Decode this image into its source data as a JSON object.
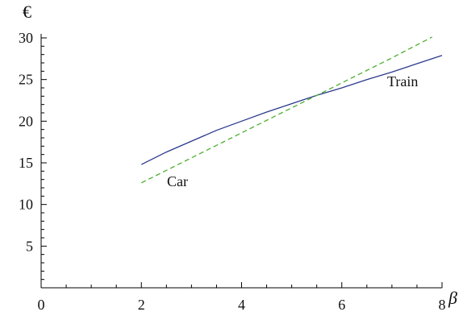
{
  "chart_data": {
    "type": "line",
    "title": "",
    "xlabel": "β",
    "ylabel": "€",
    "xlim": [
      0,
      8
    ],
    "ylim": [
      0,
      30
    ],
    "x_ticks": [
      0,
      2,
      4,
      6,
      8
    ],
    "y_ticks": [
      5,
      10,
      15,
      20,
      25,
      30
    ],
    "x_tick_labels": [
      "0",
      "2",
      "4",
      "6",
      "8"
    ],
    "y_tick_labels": [
      "5",
      "10",
      "15",
      "20",
      "25",
      "30"
    ],
    "grid": false,
    "series": [
      {
        "name": "Train",
        "color": "#2b3a8c",
        "style": "solid",
        "x": [
          2,
          2.5,
          3,
          3.5,
          4,
          4.5,
          5,
          5.5,
          6,
          6.5,
          7,
          7.5,
          8
        ],
        "y": [
          14.8,
          16.3,
          17.6,
          18.9,
          20.0,
          21.1,
          22.1,
          23.1,
          24.0,
          25.0,
          25.9,
          26.9,
          27.9
        ]
      },
      {
        "name": "Car",
        "color": "#4cae2e",
        "style": "dashed",
        "x": [
          2,
          3,
          4,
          5,
          6,
          7,
          7.8
        ],
        "y": [
          12.6,
          15.6,
          18.6,
          21.6,
          24.6,
          27.6,
          30.1
        ]
      }
    ],
    "annotations": [
      {
        "text": "Train",
        "series": "Train"
      },
      {
        "text": "Car",
        "series": "Car"
      }
    ]
  }
}
